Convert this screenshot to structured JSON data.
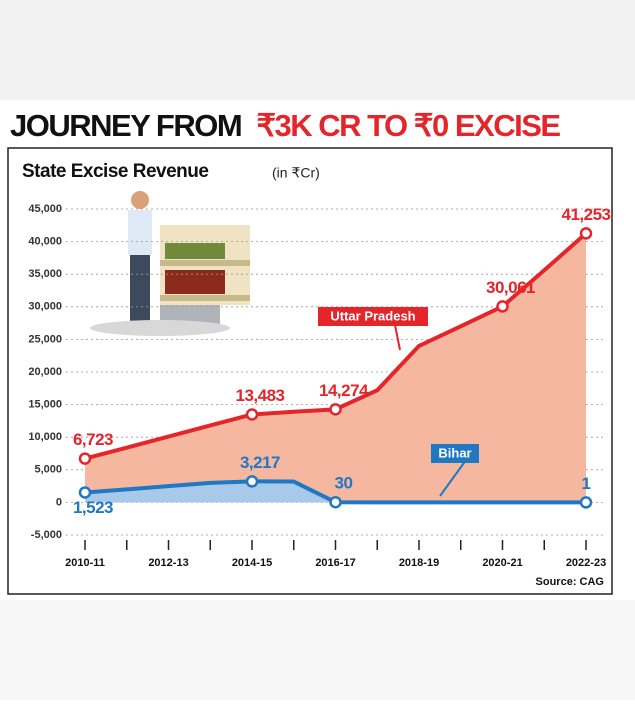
{
  "chart_data": {
    "type": "area-line",
    "title": [
      "JOURNEY FROM",
      "₹3K CR TO ₹0 EXCISE"
    ],
    "subtitle": "State Excise Revenue",
    "unit": "(in ₹Cr)",
    "source": "Source: CAG",
    "categories": [
      "2010-11",
      null,
      "2012-13",
      null,
      "2014-15",
      null,
      "2016-17",
      null,
      "2018-19",
      null,
      "2020-21",
      null,
      "2022-23"
    ],
    "series": [
      {
        "name": "Uttar Pradesh",
        "color": "#e4262b",
        "fill": "#f6b7a0",
        "values": [
          6723,
          8400,
          10100,
          11800,
          13483,
          13900,
          14274,
          17200,
          24000,
          27000,
          30061,
          35600,
          41253
        ],
        "value_labels": [
          "6,723",
          null,
          null,
          null,
          "13,483",
          null,
          "14,274",
          null,
          null,
          null,
          "30,061",
          null,
          "41,253"
        ]
      },
      {
        "name": "Bihar",
        "color": "#1f78c1",
        "fill": "#a9c9ea",
        "values": [
          1523,
          2000,
          2500,
          3000,
          3217,
          3200,
          30,
          0,
          0,
          0,
          0,
          0,
          1
        ],
        "value_labels": [
          "1,523",
          null,
          null,
          null,
          "3,217",
          null,
          "30",
          null,
          null,
          null,
          null,
          null,
          "1"
        ]
      }
    ],
    "ylim": [
      -5000,
      45000
    ],
    "yticks": [
      {
        "value": -5000,
        "label": "-5,000"
      },
      0,
      {
        "value": 5000,
        "label": "5,000"
      },
      {
        "value": 10000,
        "label": "10,000"
      },
      {
        "value": 15000,
        "label": "15,000"
      },
      {
        "value": 20000,
        "label": "20,000"
      },
      {
        "value": 25000,
        "label": "25,000"
      },
      {
        "value": 30000,
        "label": "30,000"
      },
      {
        "value": 35000,
        "label": "35,000"
      },
      {
        "value": 40000,
        "label": "40,000"
      },
      {
        "value": 45000,
        "label": "45,000"
      }
    ],
    "grid": true
  }
}
